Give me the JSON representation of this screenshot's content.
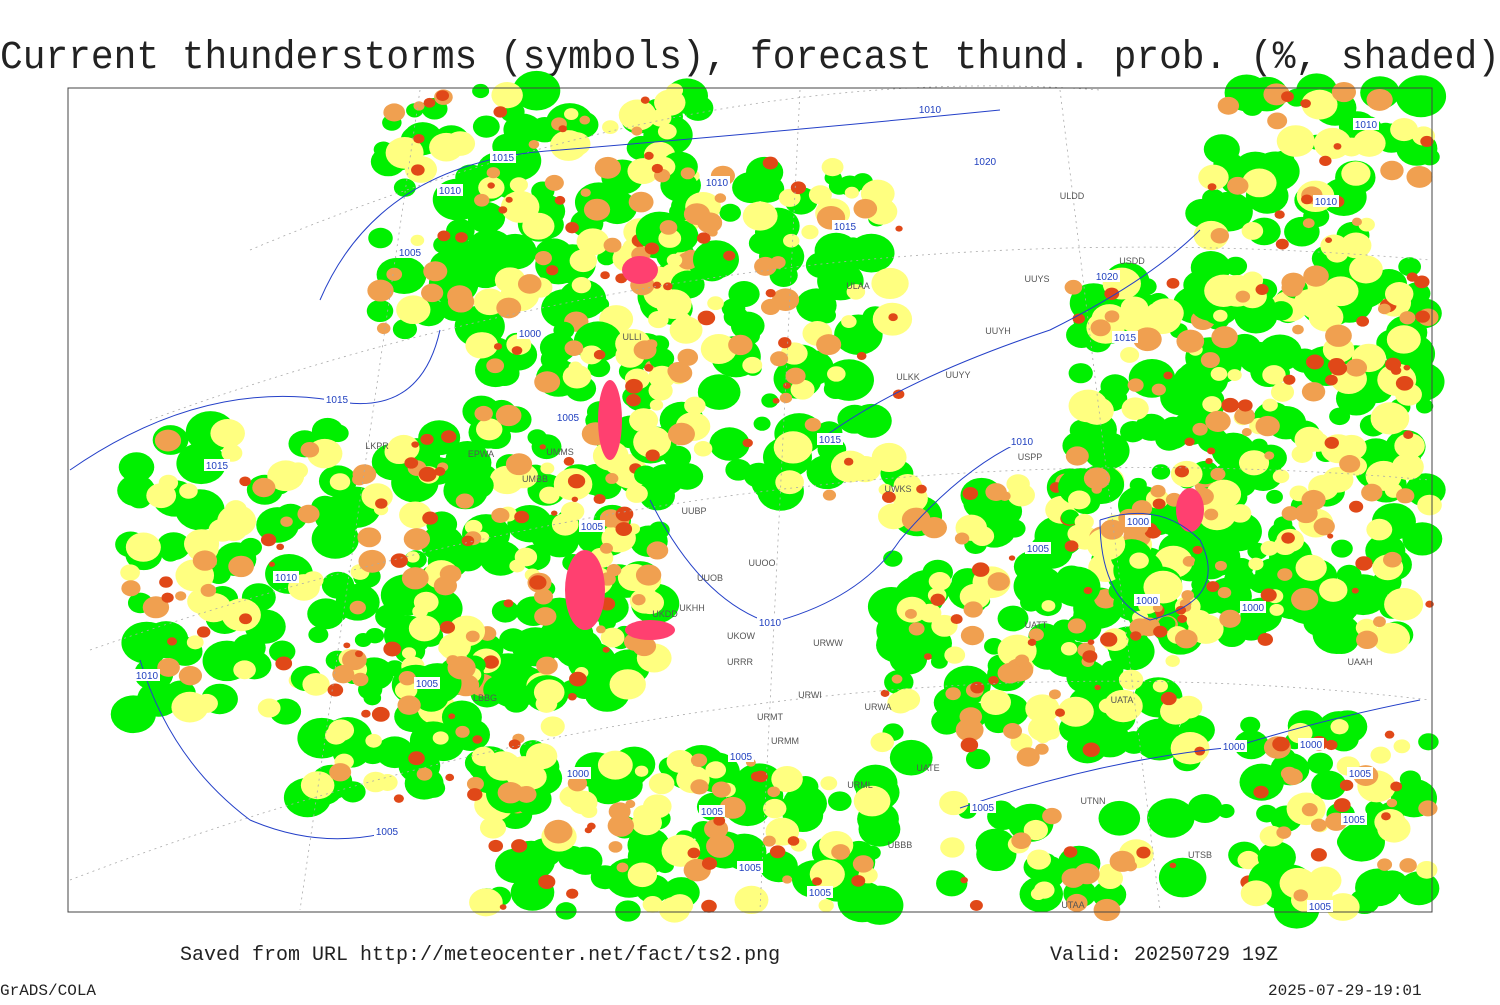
{
  "title": "Current thunderstorms (symbols), forecast thund. prob. (%, shaded)",
  "footer": {
    "source": "Saved from URL http://meteocenter.net/fact/ts2.png",
    "valid": "Valid: 20250729 19Z",
    "software": "GrADS/COLA",
    "timestamp": "2025-07-29-19:01"
  },
  "isobar_labels": [
    1010,
    1015,
    1010,
    1010,
    1020,
    1015,
    1005,
    1020,
    1000,
    1015,
    1015,
    1005,
    1015,
    1010,
    1015,
    1000,
    1005,
    1005,
    1010,
    1010,
    1000,
    1000,
    1010,
    1005,
    1000,
    1000,
    1005,
    1000,
    1005,
    1005,
    1005,
    1005,
    1005,
    1005,
    1005,
    1010,
    1010,
    1005
  ],
  "station_labels": [
    "ULDD",
    "USDD",
    "UUYS",
    "ULAA",
    "UUYH",
    "ULKK",
    "UUYY",
    "UWKS",
    "UUBP",
    "UUOO",
    "UUOB",
    "UKHH",
    "UKOW",
    "URRR",
    "URWW",
    "URWI",
    "URWA",
    "URMT",
    "URMM",
    "UATE",
    "URML",
    "UTNN",
    "UBBB",
    "UTSB",
    "UTAA",
    "UATA",
    "UATT",
    "UAAH",
    "ULLI",
    "UMMS",
    "UMBB",
    "EPWA",
    "LKPR",
    "LBBG",
    "UKDD",
    "USPP"
  ]
}
